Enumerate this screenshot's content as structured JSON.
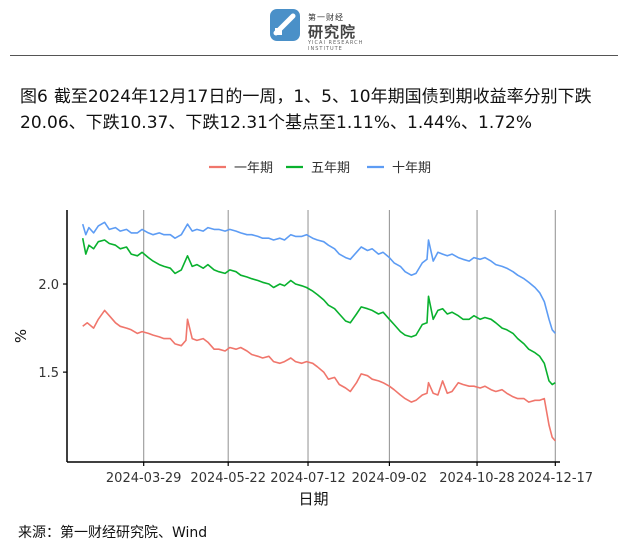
{
  "header": {
    "logo_small": "第一财经",
    "logo_name": "研究院",
    "logo_sub": "YICAI RESEARCH INSTITUTE"
  },
  "figure": {
    "label": "图6",
    "title": "截至2024年12月17日的一周，1、5、10年期国债到期收益率分别下跌20.06、下跌10.37、下跌12.31个基点至1.11%、1.44%、1.72%"
  },
  "source": "来源：第一财经研究院、Wind",
  "colors": {
    "s1": "#F0766C",
    "s5": "#09B12E",
    "s10": "#5D9CF4",
    "grid": "#9a9a9a",
    "axis": "#000000"
  },
  "chart_data": {
    "type": "line",
    "xlabel": "日期",
    "ylabel": "%",
    "xlim": [
      "2024-02-09",
      "2024-12-20"
    ],
    "ylim": [
      0.99,
      2.42
    ],
    "xticks": [
      "2024-03-29",
      "2024-05-22",
      "2024-07-12",
      "2024-09-02",
      "2024-10-28",
      "2024-12-17"
    ],
    "yticks": [
      1.5,
      2.0
    ],
    "grid": "vertical",
    "legend_position": "top-center",
    "series": [
      {
        "name": "一年期",
        "color": "#F0766C",
        "points": [
          [
            "2024-02-19",
            1.76
          ],
          [
            "2024-02-22",
            1.78
          ],
          [
            "2024-02-26",
            1.75
          ],
          [
            "2024-02-29",
            1.8
          ],
          [
            "2024-03-04",
            1.85
          ],
          [
            "2024-03-07",
            1.82
          ],
          [
            "2024-03-11",
            1.78
          ],
          [
            "2024-03-14",
            1.76
          ],
          [
            "2024-03-18",
            1.75
          ],
          [
            "2024-03-21",
            1.74
          ],
          [
            "2024-03-25",
            1.72
          ],
          [
            "2024-03-28",
            1.73
          ],
          [
            "2024-04-01",
            1.72
          ],
          [
            "2024-04-04",
            1.71
          ],
          [
            "2024-04-08",
            1.7
          ],
          [
            "2024-04-11",
            1.69
          ],
          [
            "2024-04-15",
            1.69
          ],
          [
            "2024-04-18",
            1.66
          ],
          [
            "2024-04-22",
            1.65
          ],
          [
            "2024-04-25",
            1.68
          ],
          [
            "2024-04-26",
            1.8
          ],
          [
            "2024-04-29",
            1.69
          ],
          [
            "2024-05-02",
            1.68
          ],
          [
            "2024-05-06",
            1.69
          ],
          [
            "2024-05-09",
            1.67
          ],
          [
            "2024-05-13",
            1.63
          ],
          [
            "2024-05-16",
            1.63
          ],
          [
            "2024-05-20",
            1.62
          ],
          [
            "2024-05-23",
            1.64
          ],
          [
            "2024-05-27",
            1.63
          ],
          [
            "2024-05-30",
            1.64
          ],
          [
            "2024-06-03",
            1.62
          ],
          [
            "2024-06-06",
            1.6
          ],
          [
            "2024-06-10",
            1.59
          ],
          [
            "2024-06-13",
            1.58
          ],
          [
            "2024-06-17",
            1.59
          ],
          [
            "2024-06-20",
            1.56
          ],
          [
            "2024-06-24",
            1.55
          ],
          [
            "2024-06-27",
            1.56
          ],
          [
            "2024-07-01",
            1.58
          ],
          [
            "2024-07-04",
            1.56
          ],
          [
            "2024-07-08",
            1.55
          ],
          [
            "2024-07-11",
            1.56
          ],
          [
            "2024-07-15",
            1.55
          ],
          [
            "2024-07-18",
            1.53
          ],
          [
            "2024-07-22",
            1.5
          ],
          [
            "2024-07-25",
            1.46
          ],
          [
            "2024-07-29",
            1.47
          ],
          [
            "2024-08-01",
            1.43
          ],
          [
            "2024-08-05",
            1.41
          ],
          [
            "2024-08-08",
            1.39
          ],
          [
            "2024-08-12",
            1.44
          ],
          [
            "2024-08-15",
            1.49
          ],
          [
            "2024-08-19",
            1.48
          ],
          [
            "2024-08-22",
            1.46
          ],
          [
            "2024-08-26",
            1.45
          ],
          [
            "2024-08-29",
            1.44
          ],
          [
            "2024-09-02",
            1.42
          ],
          [
            "2024-09-05",
            1.4
          ],
          [
            "2024-09-09",
            1.37
          ],
          [
            "2024-09-12",
            1.35
          ],
          [
            "2024-09-16",
            1.33
          ],
          [
            "2024-09-19",
            1.34
          ],
          [
            "2024-09-23",
            1.37
          ],
          [
            "2024-09-26",
            1.38
          ],
          [
            "2024-09-27",
            1.44
          ],
          [
            "2024-09-30",
            1.38
          ],
          [
            "2024-10-03",
            1.37
          ],
          [
            "2024-10-06",
            1.45
          ],
          [
            "2024-10-09",
            1.38
          ],
          [
            "2024-10-12",
            1.39
          ],
          [
            "2024-10-16",
            1.44
          ],
          [
            "2024-10-19",
            1.43
          ],
          [
            "2024-10-23",
            1.42
          ],
          [
            "2024-10-26",
            1.42
          ],
          [
            "2024-10-30",
            1.41
          ],
          [
            "2024-11-02",
            1.42
          ],
          [
            "2024-11-06",
            1.4
          ],
          [
            "2024-11-09",
            1.39
          ],
          [
            "2024-11-13",
            1.4
          ],
          [
            "2024-11-16",
            1.38
          ],
          [
            "2024-11-20",
            1.36
          ],
          [
            "2024-11-23",
            1.35
          ],
          [
            "2024-11-27",
            1.35
          ],
          [
            "2024-11-30",
            1.33
          ],
          [
            "2024-12-04",
            1.34
          ],
          [
            "2024-12-07",
            1.34
          ],
          [
            "2024-12-10",
            1.35
          ],
          [
            "2024-12-13",
            1.2
          ],
          [
            "2024-12-15",
            1.13
          ],
          [
            "2024-12-17",
            1.11
          ]
        ]
      },
      {
        "name": "五年期",
        "color": "#09B12E",
        "points": [
          [
            "2024-02-19",
            2.26
          ],
          [
            "2024-02-21",
            2.17
          ],
          [
            "2024-02-23",
            2.22
          ],
          [
            "2024-02-26",
            2.2
          ],
          [
            "2024-02-29",
            2.24
          ],
          [
            "2024-03-04",
            2.25
          ],
          [
            "2024-03-07",
            2.23
          ],
          [
            "2024-03-11",
            2.22
          ],
          [
            "2024-03-14",
            2.2
          ],
          [
            "2024-03-18",
            2.21
          ],
          [
            "2024-03-21",
            2.17
          ],
          [
            "2024-03-25",
            2.16
          ],
          [
            "2024-03-28",
            2.18
          ],
          [
            "2024-04-01",
            2.15
          ],
          [
            "2024-04-04",
            2.13
          ],
          [
            "2024-04-08",
            2.11
          ],
          [
            "2024-04-11",
            2.1
          ],
          [
            "2024-04-15",
            2.09
          ],
          [
            "2024-04-18",
            2.06
          ],
          [
            "2024-04-22",
            2.08
          ],
          [
            "2024-04-26",
            2.16
          ],
          [
            "2024-04-29",
            2.1
          ],
          [
            "2024-05-02",
            2.11
          ],
          [
            "2024-05-06",
            2.09
          ],
          [
            "2024-05-09",
            2.11
          ],
          [
            "2024-05-13",
            2.08
          ],
          [
            "2024-05-16",
            2.07
          ],
          [
            "2024-05-20",
            2.06
          ],
          [
            "2024-05-23",
            2.08
          ],
          [
            "2024-05-27",
            2.07
          ],
          [
            "2024-05-30",
            2.05
          ],
          [
            "2024-06-03",
            2.04
          ],
          [
            "2024-06-06",
            2.03
          ],
          [
            "2024-06-10",
            2.02
          ],
          [
            "2024-06-13",
            2.01
          ],
          [
            "2024-06-17",
            2.0
          ],
          [
            "2024-06-20",
            1.98
          ],
          [
            "2024-06-24",
            2.0
          ],
          [
            "2024-06-27",
            1.99
          ],
          [
            "2024-07-01",
            2.02
          ],
          [
            "2024-07-04",
            2.0
          ],
          [
            "2024-07-08",
            1.99
          ],
          [
            "2024-07-11",
            1.98
          ],
          [
            "2024-07-15",
            1.96
          ],
          [
            "2024-07-18",
            1.94
          ],
          [
            "2024-07-22",
            1.91
          ],
          [
            "2024-07-25",
            1.88
          ],
          [
            "2024-07-29",
            1.86
          ],
          [
            "2024-08-01",
            1.83
          ],
          [
            "2024-08-05",
            1.79
          ],
          [
            "2024-08-08",
            1.78
          ],
          [
            "2024-08-12",
            1.83
          ],
          [
            "2024-08-15",
            1.87
          ],
          [
            "2024-08-19",
            1.86
          ],
          [
            "2024-08-22",
            1.85
          ],
          [
            "2024-08-26",
            1.83
          ],
          [
            "2024-08-29",
            1.84
          ],
          [
            "2024-09-02",
            1.8
          ],
          [
            "2024-09-05",
            1.77
          ],
          [
            "2024-09-09",
            1.73
          ],
          [
            "2024-09-12",
            1.71
          ],
          [
            "2024-09-16",
            1.7
          ],
          [
            "2024-09-19",
            1.71
          ],
          [
            "2024-09-23",
            1.77
          ],
          [
            "2024-09-26",
            1.78
          ],
          [
            "2024-09-27",
            1.93
          ],
          [
            "2024-09-30",
            1.8
          ],
          [
            "2024-10-03",
            1.85
          ],
          [
            "2024-10-06",
            1.86
          ],
          [
            "2024-10-09",
            1.83
          ],
          [
            "2024-10-12",
            1.84
          ],
          [
            "2024-10-16",
            1.82
          ],
          [
            "2024-10-19",
            1.8
          ],
          [
            "2024-10-23",
            1.8
          ],
          [
            "2024-10-26",
            1.82
          ],
          [
            "2024-10-30",
            1.8
          ],
          [
            "2024-11-02",
            1.81
          ],
          [
            "2024-11-06",
            1.8
          ],
          [
            "2024-11-09",
            1.78
          ],
          [
            "2024-11-13",
            1.75
          ],
          [
            "2024-11-16",
            1.74
          ],
          [
            "2024-11-20",
            1.72
          ],
          [
            "2024-11-23",
            1.69
          ],
          [
            "2024-11-27",
            1.66
          ],
          [
            "2024-11-30",
            1.63
          ],
          [
            "2024-12-04",
            1.61
          ],
          [
            "2024-12-07",
            1.59
          ],
          [
            "2024-12-10",
            1.55
          ],
          [
            "2024-12-13",
            1.45
          ],
          [
            "2024-12-15",
            1.43
          ],
          [
            "2024-12-17",
            1.44
          ]
        ]
      },
      {
        "name": "十年期",
        "color": "#5D9CF4",
        "points": [
          [
            "2024-02-19",
            2.34
          ],
          [
            "2024-02-21",
            2.28
          ],
          [
            "2024-02-23",
            2.32
          ],
          [
            "2024-02-26",
            2.29
          ],
          [
            "2024-02-29",
            2.33
          ],
          [
            "2024-03-04",
            2.35
          ],
          [
            "2024-03-07",
            2.31
          ],
          [
            "2024-03-11",
            2.32
          ],
          [
            "2024-03-14",
            2.3
          ],
          [
            "2024-03-18",
            2.31
          ],
          [
            "2024-03-21",
            2.29
          ],
          [
            "2024-03-25",
            2.29
          ],
          [
            "2024-03-28",
            2.31
          ],
          [
            "2024-04-01",
            2.29
          ],
          [
            "2024-04-04",
            2.28
          ],
          [
            "2024-04-08",
            2.29
          ],
          [
            "2024-04-11",
            2.28
          ],
          [
            "2024-04-15",
            2.28
          ],
          [
            "2024-04-18",
            2.26
          ],
          [
            "2024-04-22",
            2.28
          ],
          [
            "2024-04-26",
            2.34
          ],
          [
            "2024-04-29",
            2.3
          ],
          [
            "2024-05-02",
            2.31
          ],
          [
            "2024-05-06",
            2.3
          ],
          [
            "2024-05-09",
            2.32
          ],
          [
            "2024-05-13",
            2.31
          ],
          [
            "2024-05-16",
            2.31
          ],
          [
            "2024-05-20",
            2.3
          ],
          [
            "2024-05-23",
            2.31
          ],
          [
            "2024-05-27",
            2.3
          ],
          [
            "2024-05-30",
            2.29
          ],
          [
            "2024-06-03",
            2.28
          ],
          [
            "2024-06-06",
            2.28
          ],
          [
            "2024-06-10",
            2.27
          ],
          [
            "2024-06-13",
            2.26
          ],
          [
            "2024-06-17",
            2.26
          ],
          [
            "2024-06-20",
            2.25
          ],
          [
            "2024-06-24",
            2.26
          ],
          [
            "2024-06-27",
            2.25
          ],
          [
            "2024-07-01",
            2.28
          ],
          [
            "2024-07-04",
            2.27
          ],
          [
            "2024-07-08",
            2.27
          ],
          [
            "2024-07-11",
            2.28
          ],
          [
            "2024-07-15",
            2.26
          ],
          [
            "2024-07-18",
            2.25
          ],
          [
            "2024-07-22",
            2.24
          ],
          [
            "2024-07-25",
            2.22
          ],
          [
            "2024-07-29",
            2.2
          ],
          [
            "2024-08-01",
            2.17
          ],
          [
            "2024-08-05",
            2.15
          ],
          [
            "2024-08-08",
            2.14
          ],
          [
            "2024-08-12",
            2.18
          ],
          [
            "2024-08-15",
            2.21
          ],
          [
            "2024-08-19",
            2.19
          ],
          [
            "2024-08-22",
            2.2
          ],
          [
            "2024-08-26",
            2.17
          ],
          [
            "2024-08-29",
            2.18
          ],
          [
            "2024-09-02",
            2.15
          ],
          [
            "2024-09-05",
            2.12
          ],
          [
            "2024-09-09",
            2.1
          ],
          [
            "2024-09-12",
            2.07
          ],
          [
            "2024-09-16",
            2.05
          ],
          [
            "2024-09-19",
            2.06
          ],
          [
            "2024-09-23",
            2.12
          ],
          [
            "2024-09-26",
            2.14
          ],
          [
            "2024-09-27",
            2.25
          ],
          [
            "2024-09-30",
            2.13
          ],
          [
            "2024-10-03",
            2.18
          ],
          [
            "2024-10-06",
            2.17
          ],
          [
            "2024-10-09",
            2.16
          ],
          [
            "2024-10-12",
            2.17
          ],
          [
            "2024-10-16",
            2.15
          ],
          [
            "2024-10-19",
            2.14
          ],
          [
            "2024-10-23",
            2.13
          ],
          [
            "2024-10-26",
            2.15
          ],
          [
            "2024-10-30",
            2.14
          ],
          [
            "2024-11-02",
            2.15
          ],
          [
            "2024-11-06",
            2.13
          ],
          [
            "2024-11-09",
            2.11
          ],
          [
            "2024-11-13",
            2.1
          ],
          [
            "2024-11-16",
            2.09
          ],
          [
            "2024-11-20",
            2.07
          ],
          [
            "2024-11-23",
            2.05
          ],
          [
            "2024-11-27",
            2.03
          ],
          [
            "2024-11-30",
            2.01
          ],
          [
            "2024-12-04",
            1.98
          ],
          [
            "2024-12-07",
            1.95
          ],
          [
            "2024-12-10",
            1.9
          ],
          [
            "2024-12-13",
            1.8
          ],
          [
            "2024-12-15",
            1.74
          ],
          [
            "2024-12-17",
            1.72
          ]
        ]
      }
    ]
  }
}
